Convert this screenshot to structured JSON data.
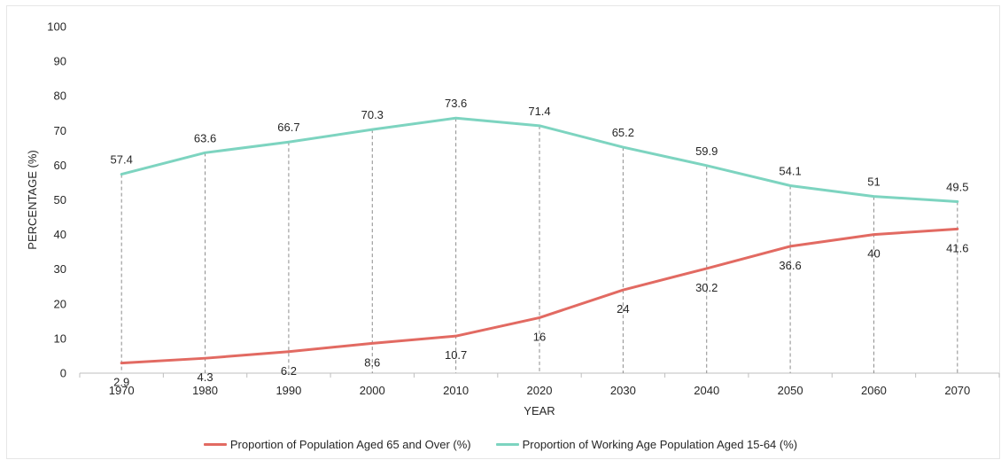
{
  "chart_data": {
    "type": "line",
    "xlabel": "YEAR",
    "ylabel": "PERCENTAGE (%)",
    "ylim": [
      0,
      100
    ],
    "yticks": [
      0,
      10,
      20,
      30,
      40,
      50,
      60,
      70,
      80,
      90,
      100
    ],
    "categories": [
      "1970",
      "1980",
      "1990",
      "2000",
      "2010",
      "2020",
      "2030",
      "2040",
      "2050",
      "2060",
      "2070"
    ],
    "series": [
      {
        "name": "Proportion of Population Aged 65 and Over (%)",
        "color": "#e26a62",
        "values": [
          2.9,
          4.3,
          6.2,
          8.6,
          10.7,
          16,
          24,
          30.2,
          36.6,
          40,
          41.6
        ],
        "labels": [
          "2.9",
          "4.3",
          "6.2",
          "8.6",
          "10.7",
          "16",
          "24",
          "30.2",
          "36.6",
          "40",
          "41.6"
        ]
      },
      {
        "name": "Proportion of Working Age Population Aged 15-64 (%)",
        "color": "#7dd4c0",
        "values": [
          57.4,
          63.6,
          66.7,
          70.3,
          73.6,
          71.4,
          65.2,
          59.9,
          54.1,
          51,
          49.5
        ],
        "labels": [
          "57.4",
          "63.6",
          "66.7",
          "70.3",
          "73.6",
          "71.4",
          "65.2",
          "59.9",
          "54.1",
          "51",
          "49.5"
        ]
      }
    ],
    "drop_lines": true,
    "grid": false,
    "legend_position": "bottom"
  }
}
